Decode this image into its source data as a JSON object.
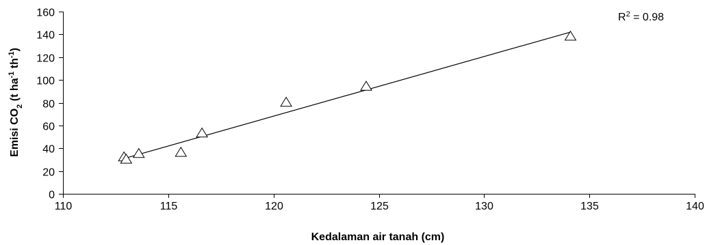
{
  "chart_data": {
    "type": "scatter",
    "title": "",
    "xlabel": "Kedalaman air tanah (cm)",
    "ylabel": {
      "prefix": "Emisi CO",
      "sub": "2",
      "mid1": " (t ha",
      "sup1": "-1",
      "mid2": " th",
      "sup2": "-1",
      "suffix": ")"
    },
    "xlim": [
      110,
      140
    ],
    "ylim": [
      0,
      160
    ],
    "xticks": [
      110,
      115,
      120,
      125,
      130,
      135,
      140
    ],
    "yticks": [
      0,
      20,
      40,
      60,
      80,
      100,
      120,
      140,
      160
    ],
    "marker": "triangle-open",
    "grid": false,
    "legend": "none",
    "points": [
      {
        "x": 112.9,
        "y": 32
      },
      {
        "x": 113.0,
        "y": 30
      },
      {
        "x": 113.6,
        "y": 35
      },
      {
        "x": 115.6,
        "y": 36
      },
      {
        "x": 116.6,
        "y": 53
      },
      {
        "x": 120.6,
        "y": 80
      },
      {
        "x": 124.4,
        "y": 94
      },
      {
        "x": 134.1,
        "y": 138
      }
    ],
    "trendline": {
      "x": [
        112.9,
        134.1
      ],
      "y": [
        31,
        142
      ]
    },
    "annotation": {
      "text": "R",
      "sup": "2",
      "suffix": " = 0.98"
    }
  }
}
